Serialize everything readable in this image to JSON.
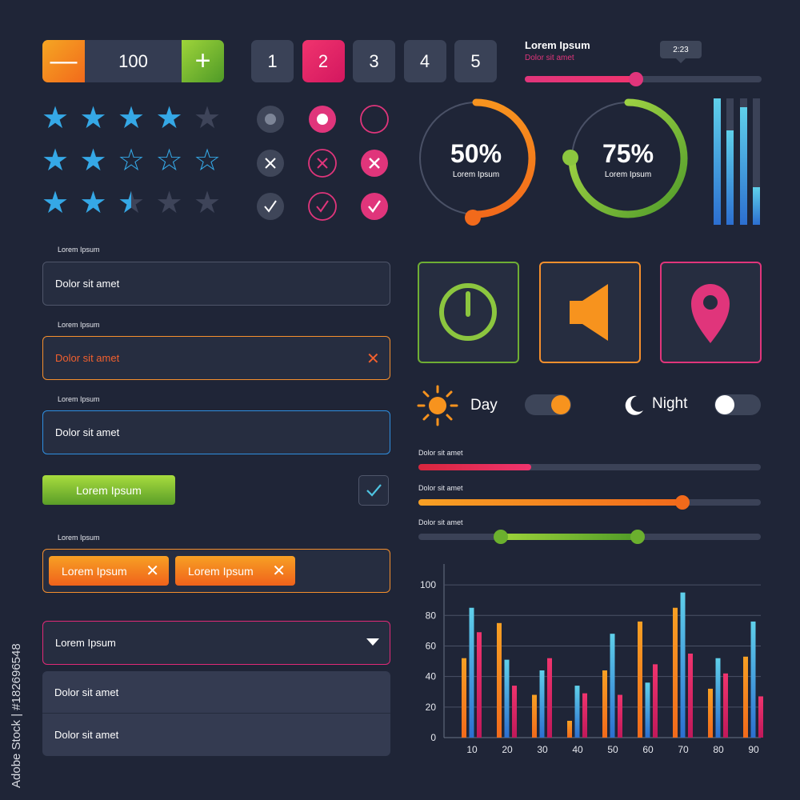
{
  "stepper": {
    "minus": "—",
    "plus": "+",
    "value": "100"
  },
  "pagination": [
    {
      "label": "1",
      "active": false
    },
    {
      "label": "2",
      "active": true
    },
    {
      "label": "3",
      "active": false
    },
    {
      "label": "4",
      "active": false
    },
    {
      "label": "5",
      "active": false
    }
  ],
  "timeline": {
    "title": "Lorem Ipsum",
    "subtitle": "Dolor sit amet",
    "time": "2:23",
    "progress": 0.47
  },
  "ratings": [
    4,
    2,
    2.5
  ],
  "progress_rings": [
    {
      "value": "50%",
      "caption": "Lorem Ipsum"
    },
    {
      "value": "75%",
      "caption": "Lorem Ipsum"
    }
  ],
  "level_bars": [
    1.0,
    0.75,
    0.93,
    0.3
  ],
  "fields": [
    {
      "label": "Lorem Ipsum",
      "value": "Dolor sit amet"
    },
    {
      "label": "Lorem Ipsum",
      "value": "Dolor sit amet"
    },
    {
      "label": "Lorem Ipsum",
      "value": "Dolor sit amet"
    }
  ],
  "primary_button": "Lorem Ipsum",
  "tags": {
    "label": "Lorem Ipsum",
    "chips": [
      "Lorem Ipsum",
      "Lorem Ipsum"
    ],
    "remove": "✕"
  },
  "dropdown": {
    "selected": "Lorem Ipsum",
    "options": [
      "Dolor sit amet",
      "Dolor sit amet"
    ]
  },
  "icons": [
    "timer-icon",
    "speaker-icon",
    "location-pin-icon"
  ],
  "day_night": {
    "day": "Day",
    "night": "Night"
  },
  "sliders": [
    {
      "label": "Dolor sit amet",
      "value": 0.33
    },
    {
      "label": "Dolor sit amet",
      "value": 0.77
    },
    {
      "label": "Dolor sit amet",
      "range": [
        0.24,
        0.64
      ]
    }
  ],
  "colors": {
    "bg": "#1f2537",
    "orange": "#f7931e",
    "pink": "#e0357b",
    "cyan": "#4ec3e0",
    "green": "#8cc63f"
  },
  "watermark": {
    "side_text": "Adobe Stock | #182696548"
  },
  "chart_data": {
    "type": "bar",
    "categories": [
      "10",
      "20",
      "30",
      "40",
      "50",
      "60",
      "70",
      "80",
      "90"
    ],
    "series": [
      {
        "values": [
          52,
          75,
          28,
          11,
          44,
          76,
          85,
          32,
          53
        ]
      },
      {
        "values": [
          85,
          51,
          44,
          34,
          68,
          36,
          95,
          52,
          76
        ]
      },
      {
        "values": [
          69,
          34,
          52,
          29,
          28,
          48,
          55,
          42,
          27
        ]
      }
    ],
    "yticks": [
      0,
      20,
      40,
      60,
      80,
      100
    ],
    "ylim": [
      0,
      110
    ],
    "grid": true
  }
}
